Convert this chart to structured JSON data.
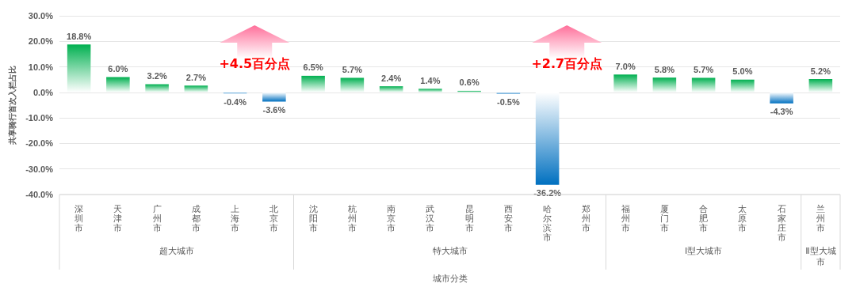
{
  "chart_data": {
    "type": "bar",
    "xlabel": "城市分类",
    "ylabel": "共享骑行首次入栏占比",
    "categories": [
      "深圳市",
      "天津市",
      "广州市",
      "成都市",
      "上海市",
      "北京市",
      "沈阳市",
      "杭州市",
      "南京市",
      "武汉市",
      "昆明市",
      "西安市",
      "哈尔滨市",
      "郑州市",
      "福州市",
      "厦门市",
      "合肥市",
      "太原市",
      "石家庄市",
      "兰州市"
    ],
    "values": [
      18.8,
      6.0,
      3.2,
      2.7,
      -0.4,
      -3.6,
      6.5,
      5.7,
      2.4,
      1.4,
      0.6,
      -0.5,
      -36.2,
      null,
      7.0,
      5.8,
      5.7,
      5.0,
      -4.3,
      5.2
    ],
    "colors": [
      "#00b050",
      "#00b050",
      "#00b050",
      "#00b050",
      "#0070c0",
      "#0070c0",
      "#00b050",
      "#00b050",
      "#00b050",
      "#00b050",
      "#00b050",
      "#0070c0",
      "#0070c0",
      "#00b050",
      "#00b050",
      "#00b050",
      "#00b050",
      "#00b050",
      "#0070c0",
      "#00b050"
    ],
    "value_labels": [
      "18.8%",
      "6.0%",
      "3.2%",
      "2.7%",
      "-0.4%",
      "-3.6%",
      "6.5%",
      "5.7%",
      "2.4%",
      "1.4%",
      "0.6%",
      "-0.5%",
      "-36.2%",
      null,
      "7.0%",
      "5.8%",
      "5.7%",
      "5.0%",
      "-4.3%",
      "5.2%"
    ],
    "ylim": [
      -40,
      30
    ],
    "yticks": [
      {
        "value": -40,
        "label": "-40.0%"
      },
      {
        "value": -30,
        "label": "-30.0%"
      },
      {
        "value": -20,
        "label": "-20.0%"
      },
      {
        "value": -10,
        "label": "-10.0%"
      },
      {
        "value": 0,
        "label": "0.0%"
      },
      {
        "value": 10,
        "label": "10.0%"
      },
      {
        "value": 20,
        "label": "20.0%"
      },
      {
        "value": 30,
        "label": "30.0%"
      }
    ],
    "grid": "y",
    "annotations": [
      "超大城市",
      "特大城市",
      "Ⅰ型大城市",
      "Ⅱ型大城市",
      "+4.5百分点",
      "+2.7百分点"
    ]
  }
}
